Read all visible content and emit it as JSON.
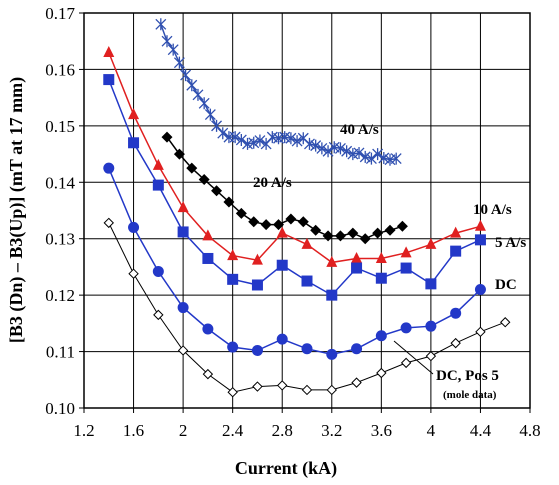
{
  "chart_data": {
    "type": "line",
    "xlabel": "Current (kA)",
    "ylabel": "[B3 (Dn) – B3(Up)] (mT at 17 mm)",
    "xlim": [
      1.2,
      4.8
    ],
    "ylim": [
      0.1,
      0.17
    ],
    "xticks": [
      "1.2",
      "1.6",
      "2",
      "2.4",
      "2.8",
      "3.2",
      "3.6",
      "4",
      "4.4",
      "4.8"
    ],
    "yticks": [
      "0.10",
      "0.11",
      "0.12",
      "0.13",
      "0.14",
      "0.15",
      "0.16",
      "0.17"
    ],
    "grid": true,
    "legend": "none",
    "series": [
      {
        "name": "40 A/s",
        "color": "#3050b0",
        "marker": "asterisk",
        "x": [
          1.82,
          1.87,
          1.92,
          1.97,
          2.02,
          2.07,
          2.12,
          2.17,
          2.22,
          2.27,
          2.32,
          2.37,
          2.42,
          2.47,
          2.52,
          2.57,
          2.62,
          2.67,
          2.72,
          2.77,
          2.82,
          2.87,
          2.92,
          2.97,
          3.02,
          3.07,
          3.12,
          3.17,
          3.22,
          3.27,
          3.32,
          3.37,
          3.42,
          3.47,
          3.52,
          3.57,
          3.62,
          3.67,
          3.72
        ],
        "y": [
          0.168,
          0.165,
          0.1635,
          0.1612,
          0.159,
          0.1572,
          0.1555,
          0.154,
          0.152,
          0.15,
          0.1487,
          0.148,
          0.148,
          0.1475,
          0.1468,
          0.147,
          0.1474,
          0.1468,
          0.148,
          0.1478,
          0.148,
          0.1478,
          0.1473,
          0.1478,
          0.1468,
          0.1465,
          0.146,
          0.1455,
          0.1462,
          0.146,
          0.1455,
          0.145,
          0.1452,
          0.1445,
          0.1442,
          0.145,
          0.1443,
          0.144,
          0.1442
        ]
      },
      {
        "name": "20 A/s",
        "color": "#000000",
        "marker": "diamond",
        "x": [
          1.87,
          1.97,
          2.07,
          2.17,
          2.27,
          2.37,
          2.47,
          2.57,
          2.67,
          2.77,
          2.87,
          2.97,
          3.07,
          3.17,
          3.27,
          3.37,
          3.47,
          3.57,
          3.67,
          3.77
        ],
        "y": [
          0.148,
          0.145,
          0.1425,
          0.1405,
          0.1385,
          0.1365,
          0.1345,
          0.133,
          0.1325,
          0.1325,
          0.1335,
          0.133,
          0.1315,
          0.1305,
          0.1305,
          0.131,
          0.13,
          0.131,
          0.1315,
          0.1322
        ]
      },
      {
        "name": "10 A/s",
        "color": "#e02020",
        "marker": "triangle",
        "x": [
          1.4,
          1.6,
          1.8,
          2.0,
          2.2,
          2.4,
          2.6,
          2.8,
          3.0,
          3.2,
          3.4,
          3.6,
          3.8,
          4.0,
          4.2,
          4.4
        ],
        "y": [
          0.163,
          0.152,
          0.143,
          0.1355,
          0.1305,
          0.127,
          0.1262,
          0.131,
          0.129,
          0.1258,
          0.1265,
          0.1265,
          0.1275,
          0.129,
          0.131,
          0.1322
        ]
      },
      {
        "name": "5 A/s",
        "color": "#2338c8",
        "marker": "square",
        "x": [
          1.4,
          1.6,
          1.8,
          2.0,
          2.2,
          2.4,
          2.6,
          2.8,
          3.0,
          3.2,
          3.4,
          3.6,
          3.8,
          4.0,
          4.2,
          4.4
        ],
        "y": [
          0.1582,
          0.147,
          0.1395,
          0.1312,
          0.1265,
          0.1228,
          0.1218,
          0.1253,
          0.1225,
          0.12,
          0.1248,
          0.123,
          0.1248,
          0.122,
          0.1278,
          0.1298
        ]
      },
      {
        "name": "DC",
        "color": "#2338c8",
        "marker": "circle",
        "x": [
          1.4,
          1.6,
          1.8,
          2.0,
          2.2,
          2.4,
          2.6,
          2.8,
          3.0,
          3.2,
          3.4,
          3.6,
          3.8,
          4.0,
          4.2,
          4.4
        ],
        "y": [
          0.1425,
          0.132,
          0.1242,
          0.1178,
          0.114,
          0.1108,
          0.1102,
          0.1122,
          0.1105,
          0.1095,
          0.1105,
          0.1128,
          0.1142,
          0.1145,
          0.1168,
          0.121
        ]
      },
      {
        "name": "DC, Pos 5 (mole data)",
        "color": "#000000",
        "marker": "open-diamond",
        "x": [
          1.4,
          1.6,
          1.8,
          2.0,
          2.2,
          2.4,
          2.6,
          2.8,
          3.0,
          3.2,
          3.4,
          3.6,
          3.8,
          4.0,
          4.2,
          4.4,
          4.6
        ],
        "y": [
          0.1328,
          0.1238,
          0.1165,
          0.1102,
          0.106,
          0.1028,
          0.1038,
          0.104,
          0.1032,
          0.1032,
          0.1045,
          0.1062,
          0.108,
          0.1092,
          0.1115,
          0.1135,
          0.1152
        ]
      }
    ],
    "annotations": {
      "s40": "40 A/s",
      "s20": "20 A/s",
      "s10": "10 A/s",
      "s5": "5 A/s",
      "dc": "DC",
      "dcpos5": "DC, Pos 5",
      "mole": "(mole data)"
    }
  }
}
